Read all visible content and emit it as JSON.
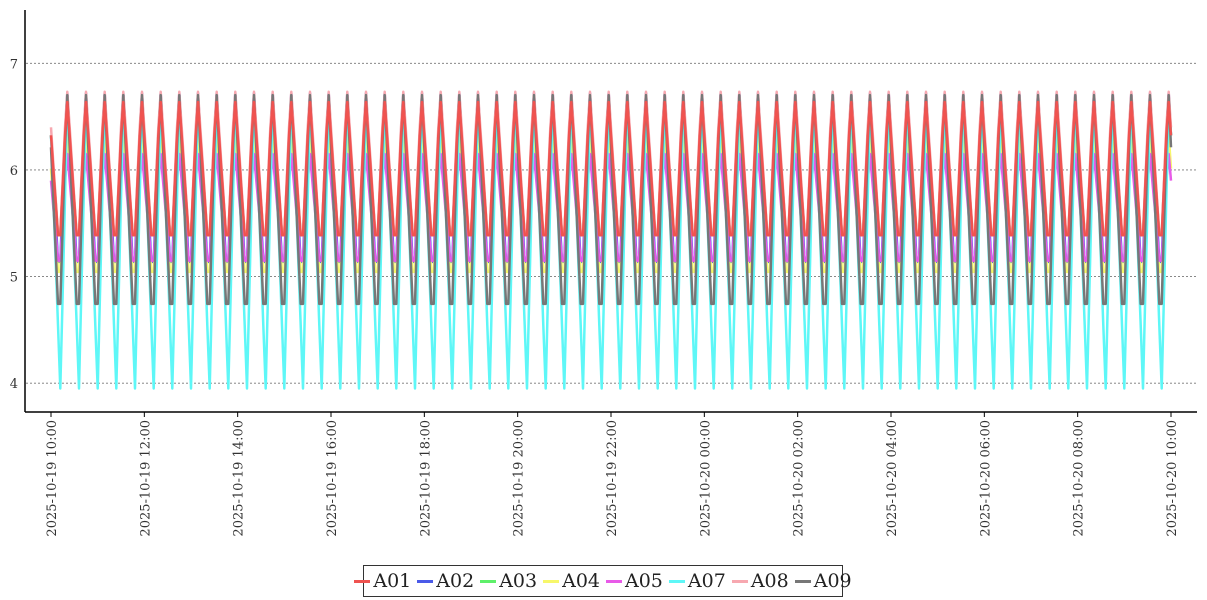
{
  "chart_data": {
    "type": "line",
    "title": "",
    "xlabel": "",
    "ylabel": "",
    "ylim": [
      3.73,
      7.5
    ],
    "y_ticks": [
      4,
      5,
      6,
      7
    ],
    "grid": "horizontal dotted",
    "legend_placement": "bottom-center",
    "x_range": [
      "2025-10-19 10:00",
      "2025-10-20 10:00"
    ],
    "x_tick_labels": [
      "2025-10-19 10:00",
      "2025-10-19 12:00",
      "2025-10-19 14:00",
      "2025-10-19 16:00",
      "2025-10-19 18:00",
      "2025-10-19 20:00",
      "2025-10-19 22:00",
      "2025-10-20 00:00",
      "2025-10-20 02:00",
      "2025-10-20 04:00",
      "2025-10-20 06:00",
      "2025-10-20 08:00",
      "2025-10-20 10:00"
    ],
    "cycle_minutes": 24,
    "series": [
      {
        "name": "A01",
        "color": "#ef5350",
        "min": 5.2,
        "max": 6.7,
        "phase": 0.55
      },
      {
        "name": "A02",
        "color": "#4a5ae8",
        "min": 4.9,
        "max": 6.8,
        "phase": 0.55
      },
      {
        "name": "A03",
        "color": "#5ef06a",
        "min": 5.2,
        "max": 6.7,
        "phase": 0.55
      },
      {
        "name": "A04",
        "color": "#f7f76a",
        "min": 4.85,
        "max": 6.4,
        "phase": 0.55
      },
      {
        "name": "A05",
        "color": "#e85ae8",
        "min": 5.0,
        "max": 6.2,
        "phase": 0.55
      },
      {
        "name": "A07",
        "color": "#5ef7f7",
        "min": 3.95,
        "max": 6.8,
        "phase": 0.5
      },
      {
        "name": "A08",
        "color": "#f7a8b0",
        "min": 5.2,
        "max": 6.8,
        "phase": 0.55
      },
      {
        "name": "A09",
        "color": "#777777",
        "min": 4.45,
        "max": 6.8,
        "phase": 0.55
      }
    ]
  }
}
